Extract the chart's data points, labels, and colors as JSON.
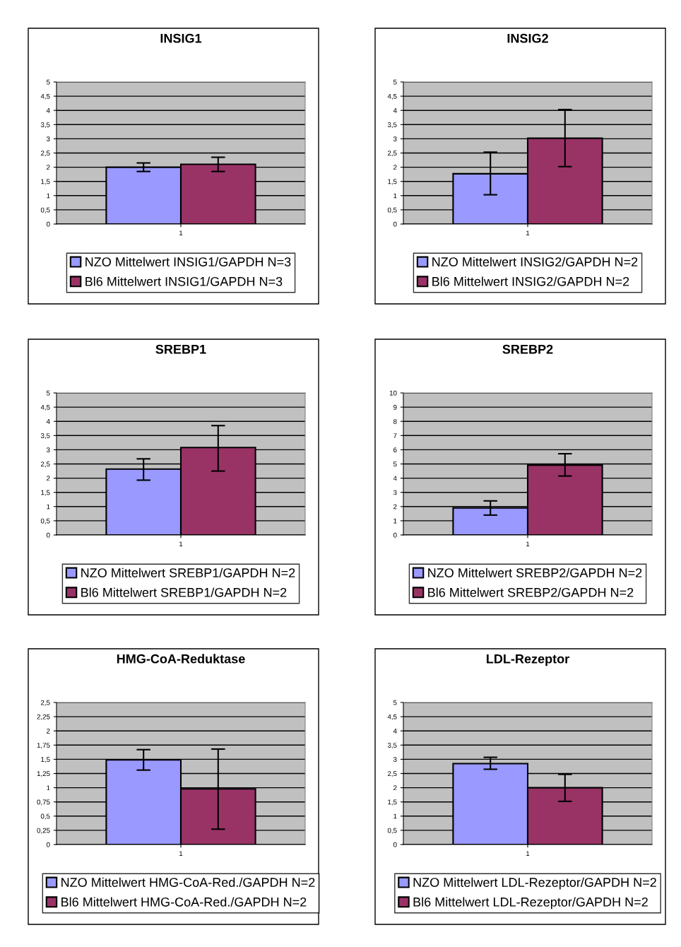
{
  "chart_data": [
    {
      "type": "bar",
      "title": "INSIG1",
      "categories": [
        "1"
      ],
      "legend": "bottom",
      "grid": "y",
      "ylim": [
        0,
        5
      ],
      "yticks": [
        0,
        {
          "value": 0.5,
          "label": "0,5"
        },
        1,
        {
          "value": 1.5,
          "label": "1,5"
        },
        2,
        {
          "value": 2.5,
          "label": "2,5"
        },
        3,
        {
          "value": 3.5,
          "label": "3,5"
        },
        4,
        {
          "value": 4.5,
          "label": "4,5"
        },
        5
      ],
      "series": [
        {
          "name": "NZO Mittelwert INSIG1/GAPDH N=3",
          "color": "#9999ff",
          "values": [
            2.0
          ],
          "errors": [
            [
              1.85,
              2.15
            ]
          ]
        },
        {
          "name": "Bl6 Mittelwert INSIG1/GAPDH N=3",
          "color": "#993366",
          "values": [
            2.1
          ],
          "errors": [
            [
              1.85,
              2.35
            ]
          ]
        }
      ]
    },
    {
      "type": "bar",
      "title": "INSIG2",
      "categories": [
        "1"
      ],
      "legend": "bottom",
      "grid": "y",
      "ylim": [
        0,
        5
      ],
      "yticks": [
        0,
        {
          "value": 0.5,
          "label": "0,5"
        },
        1,
        {
          "value": 1.5,
          "label": "1,5"
        },
        2,
        {
          "value": 2.5,
          "label": "2,5"
        },
        3,
        {
          "value": 3.5,
          "label": "3,5"
        },
        4,
        {
          "value": 4.5,
          "label": "4,5"
        },
        5
      ],
      "series": [
        {
          "name": "NZO Mittelwert INSIG2/GAPDH N=2",
          "color": "#9999ff",
          "values": [
            1.77
          ],
          "errors": [
            [
              1.03,
              2.53
            ]
          ]
        },
        {
          "name": "Bl6 Mittelwert INSIG2/GAPDH N=2",
          "color": "#993366",
          "values": [
            3.02
          ],
          "errors": [
            [
              2.02,
              4.03
            ]
          ]
        }
      ]
    },
    {
      "type": "bar",
      "title": "SREBP1",
      "categories": [
        "1"
      ],
      "legend": "bottom",
      "grid": "y",
      "ylim": [
        0,
        5
      ],
      "yticks": [
        0,
        {
          "value": 0.5,
          "label": "0,5"
        },
        1,
        {
          "value": 1.5,
          "label": "1,5"
        },
        2,
        {
          "value": 2.5,
          "label": "2,5"
        },
        3,
        {
          "value": 3.5,
          "label": "3,5"
        },
        4,
        {
          "value": 4.5,
          "label": "4,5"
        },
        5
      ],
      "series": [
        {
          "name": "NZO Mittelwert SREBP1/GAPDH N=2",
          "color": "#9999ff",
          "values": [
            2.32
          ],
          "errors": [
            [
              1.93,
              2.68
            ]
          ]
        },
        {
          "name": "Bl6 Mittelwert SREBP1/GAPDH N=2",
          "color": "#993366",
          "values": [
            3.08
          ],
          "errors": [
            [
              2.25,
              3.85
            ]
          ]
        }
      ]
    },
    {
      "type": "bar",
      "title": "SREBP2",
      "categories": [
        "1"
      ],
      "legend": "bottom",
      "grid": "y",
      "ylim": [
        0,
        10
      ],
      "yticks": [
        {
          "value": 0,
          "label": "0"
        },
        {
          "value": 1,
          "label": "1"
        },
        {
          "value": 2,
          "label": "2"
        },
        {
          "value": 3,
          "label": "3"
        },
        {
          "value": 4,
          "label": "4"
        },
        {
          "value": 5,
          "label": "5"
        },
        {
          "value": 6,
          "label": "6"
        },
        {
          "value": 7,
          "label": "7"
        },
        {
          "value": 8,
          "label": "8"
        },
        {
          "value": 9,
          "label": "9"
        },
        {
          "value": 10,
          "label": "10"
        }
      ],
      "series": [
        {
          "name": "NZO Mittelwert SREBP2/GAPDH N=2",
          "color": "#9999ff",
          "values": [
            1.9
          ],
          "errors": [
            [
              1.4,
              2.4
            ]
          ]
        },
        {
          "name": "Bl6 Mittelwert SREBP2/GAPDH N=2",
          "color": "#993366",
          "values": [
            4.92
          ],
          "errors": [
            [
              4.15,
              5.72
            ]
          ]
        }
      ]
    },
    {
      "type": "bar",
      "title": "HMG-CoA-Reduktase",
      "categories": [
        "1"
      ],
      "legend": "bottom",
      "grid": "y",
      "ylim": [
        0,
        2.5
      ],
      "yticks": [
        0,
        {
          "value": 0.25,
          "label": "0,25"
        },
        {
          "value": 0.5,
          "label": "0,5"
        },
        {
          "value": 0.75,
          "label": "0,75"
        },
        1,
        {
          "value": 1.25,
          "label": "1,25"
        },
        {
          "value": 1.5,
          "label": "1,5"
        },
        {
          "value": 1.75,
          "label": "1,75"
        },
        2,
        {
          "value": 2.25,
          "label": "2,25"
        },
        {
          "value": 2.5,
          "label": "2,5"
        }
      ],
      "series": [
        {
          "name": "NZO Mittelwert HMG-CoA-Red./GAPDH N=2",
          "color": "#9999ff",
          "values": [
            1.49
          ],
          "errors": [
            [
              1.31,
              1.67
            ]
          ]
        },
        {
          "name": "Bl6 Mittelwert HMG-CoA-Red./GAPDH N=2",
          "color": "#993366",
          "values": [
            0.98
          ],
          "errors": [
            [
              0.27,
              1.68
            ]
          ]
        }
      ]
    },
    {
      "type": "bar",
      "title": "LDL-Rezeptor",
      "categories": [
        "1"
      ],
      "legend": "bottom",
      "grid": "y",
      "ylim": [
        0,
        5
      ],
      "yticks": [
        0,
        {
          "value": 0.5,
          "label": "0,5"
        },
        1,
        {
          "value": 1.5,
          "label": "1,5"
        },
        2,
        {
          "value": 2.5,
          "label": "2,5"
        },
        3,
        {
          "value": 3.5,
          "label": "3,5"
        },
        4,
        {
          "value": 4.5,
          "label": "4,5"
        },
        5
      ],
      "series": [
        {
          "name": "NZO Mittelwert LDL-Rezeptor/GAPDH N=2",
          "color": "#9999ff",
          "values": [
            2.85
          ],
          "errors": [
            [
              2.65,
              3.07
            ]
          ]
        },
        {
          "name": "Bl6 Mittelwert LDL-Rezeptor/GAPDH N=2",
          "color": "#993366",
          "values": [
            2.0
          ],
          "errors": [
            [
              1.52,
              2.47
            ]
          ]
        }
      ]
    }
  ]
}
